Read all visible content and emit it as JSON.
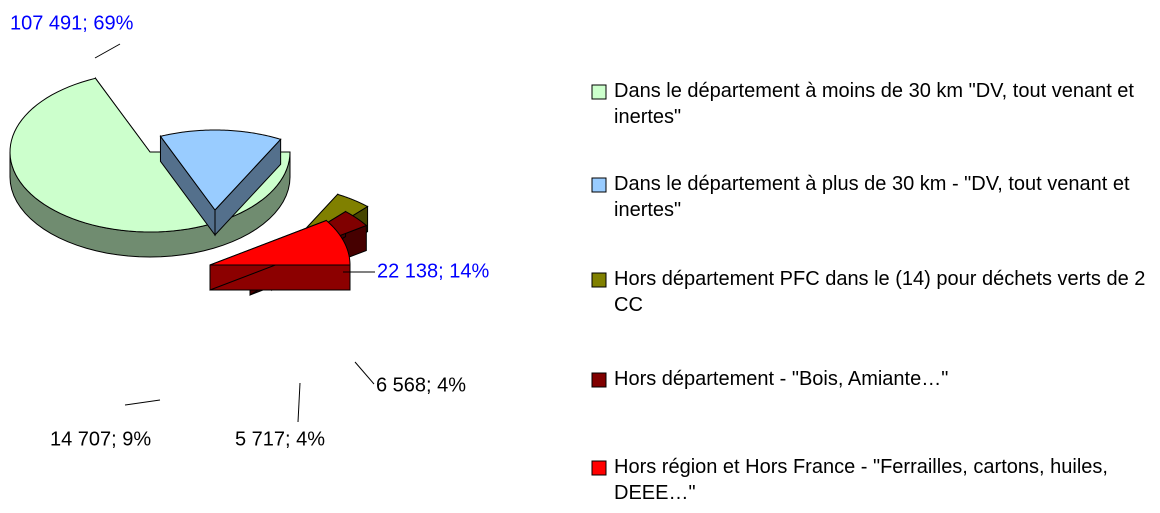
{
  "chart_data": {
    "type": "pie3d",
    "categories": [
      "Dans le département à moins de 30 km \"DV, tout venant et inertes\"",
      "Dans le département à plus de 30 km - \"DV, tout venant et inertes\"",
      "Hors département PFC dans le (14) pour déchets verts de 2 CC",
      "Hors département - \"Bois, Amiante…\"",
      "Hors région et Hors France - \"Ferrailles, cartons, huiles, DEEE…\""
    ],
    "values": [
      107491,
      22138,
      6568,
      5717,
      14707
    ],
    "value_labels": [
      "107 491; 69%",
      "22 138; 14%",
      "6 568; 4%",
      "5 717; 4%",
      "14 707; 9%"
    ],
    "colors": [
      "#ccffcc",
      "#99ccff",
      "#808000",
      "#800000",
      "#ff0000"
    ],
    "legend": "right"
  }
}
